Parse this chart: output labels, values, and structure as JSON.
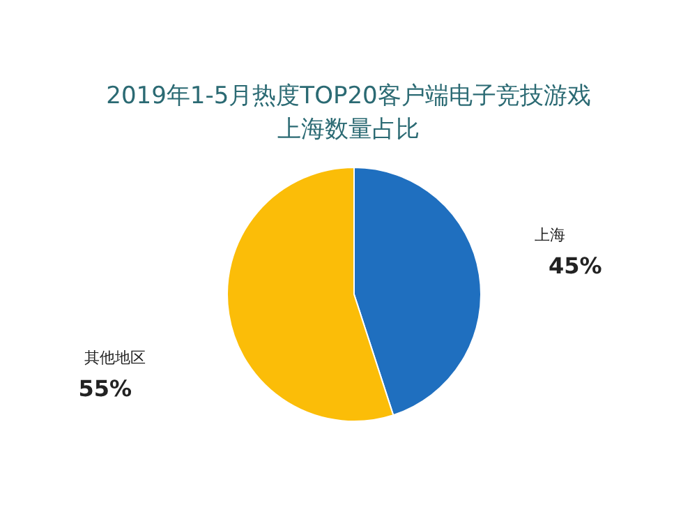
{
  "chart_data": {
    "type": "pie",
    "title": "2019年1-5月热度TOP20客户端电子竞技游戏上海数量占比",
    "categories": [
      "上海",
      "其他地区"
    ],
    "values": [
      45,
      55
    ],
    "colors": [
      "#1f6fbf",
      "#fbbd08"
    ],
    "value_labels": [
      "45%",
      "55%"
    ]
  }
}
